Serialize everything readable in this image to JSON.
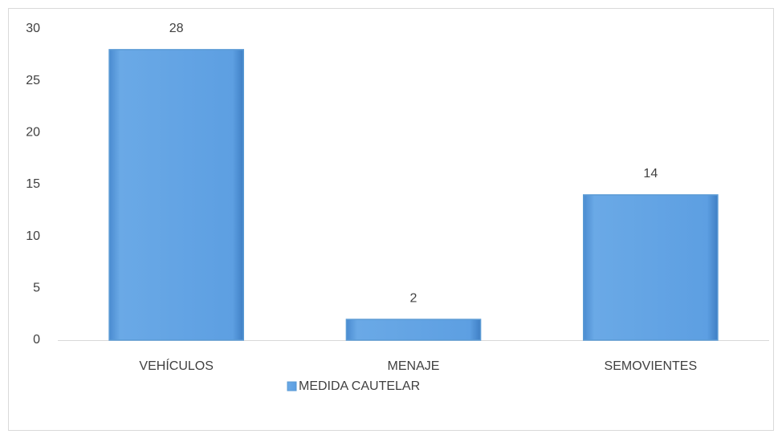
{
  "chart_data": {
    "type": "bar",
    "categories": [
      "VEHÍCULOS",
      "MENAJE",
      "SEMOVIENTES"
    ],
    "series": [
      {
        "name": "MEDIDA CAUTELAR",
        "color": "#5b9bd5",
        "values": [
          28,
          2,
          14
        ]
      }
    ],
    "ylim": [
      0,
      30
    ],
    "yticks": [
      0,
      5,
      10,
      15,
      20,
      25,
      30
    ],
    "grid": false,
    "data_labels": true,
    "legend": "bottom"
  }
}
